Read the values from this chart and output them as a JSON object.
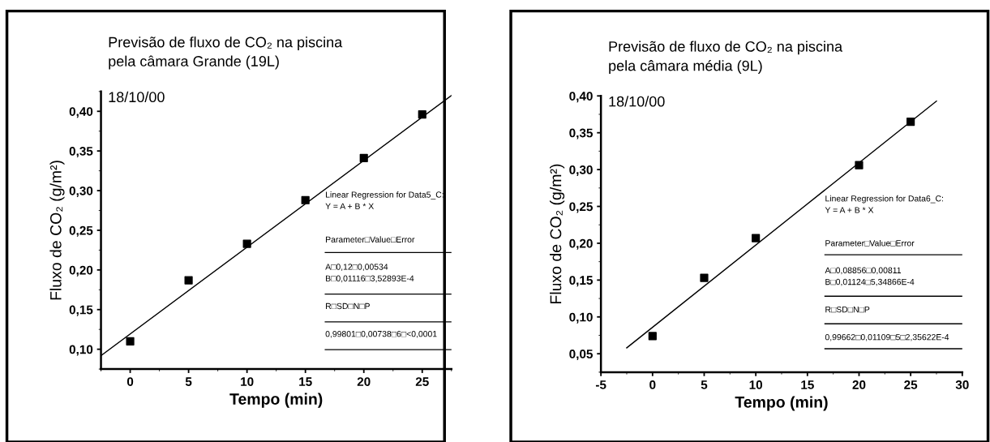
{
  "chart_data": [
    {
      "type": "scatter",
      "title": "Previsão de fluxo de CO₂ na piscina\npela câmara Grande (19L)",
      "subtitle": "18/10/00",
      "xlabel": "Tempo (min)",
      "ylabel": "Fluxo de CO₂ (g/m²)",
      "series": [
        {
          "color": "#000000",
          "marker": "square",
          "x": [
            0,
            5,
            10,
            15,
            20,
            25
          ],
          "values": [
            0.11,
            0.187,
            0.233,
            0.288,
            0.341,
            0.396
          ]
        },
        {
          "type": "line",
          "color": "#000000",
          "marker": "none",
          "line_style": "solid",
          "x": [
            -2.5,
            27.5
          ],
          "values": [
            0.092,
            0.42
          ]
        }
      ],
      "xlim": [
        -2.5,
        27.5
      ],
      "xticks": [
        0,
        5,
        10,
        15,
        20,
        25
      ],
      "ylim": [
        0.075,
        0.425
      ],
      "yticks": [
        {
          "value": 0.1,
          "label": "0,10"
        },
        {
          "value": 0.15,
          "label": "0,15"
        },
        {
          "value": 0.2,
          "label": "0,20"
        },
        {
          "value": 0.25,
          "label": "0,25"
        },
        {
          "value": 0.3,
          "label": "0,30"
        },
        {
          "value": 0.35,
          "label": "0,35"
        },
        {
          "value": 0.4,
          "label": "0,40"
        }
      ],
      "grid": false,
      "legend": false,
      "annotations": [
        "Linear Regression for Data5_C:\nY = A + B * X",
        "Parameter□Value□Error",
        "A□0,12□0,00534\nB□0,01116□3,52893E-4",
        "R□SD□N□P",
        "0,99801□0,00738□6□<0,0001"
      ]
    },
    {
      "type": "scatter",
      "title": "Previsão de fluxo de CO₂ na piscina\npela câmara média (9L)",
      "subtitle": "18/10/00",
      "xlabel": "Tempo (min)",
      "ylabel": "Fluxo de CO₂ (g/m²)",
      "series": [
        {
          "color": "#000000",
          "marker": "square",
          "x": [
            0,
            5,
            10,
            20,
            25
          ],
          "values": [
            0.074,
            0.153,
            0.207,
            0.306,
            0.365
          ]
        },
        {
          "type": "line",
          "color": "#000000",
          "marker": "none",
          "line_style": "solid",
          "x": [
            -2.5,
            27.5
          ],
          "values": [
            0.058,
            0.393
          ]
        }
      ],
      "xlim": [
        -5,
        30
      ],
      "xticks": [
        -5,
        0,
        5,
        10,
        15,
        20,
        25,
        30
      ],
      "ylim": [
        0.025,
        0.4
      ],
      "yticks": [
        {
          "value": 0.05,
          "label": "0,05"
        },
        {
          "value": 0.1,
          "label": "0,10"
        },
        {
          "value": 0.15,
          "label": "0,15"
        },
        {
          "value": 0.2,
          "label": "0,20"
        },
        {
          "value": 0.25,
          "label": "0,25"
        },
        {
          "value": 0.3,
          "label": "0,30"
        },
        {
          "value": 0.35,
          "label": "0,35"
        },
        {
          "value": 0.4,
          "label": "0,40"
        }
      ],
      "grid": false,
      "legend": false,
      "annotations": [
        "Linear Regression for Data6_C:\nY = A + B * X",
        "Parameter□Value□Error",
        "A□0,08856□0,00811\nB□0,01124□5,34866E-4",
        "R□SD□N□P",
        "0,99662□0,01109□5□2,35622E-4"
      ]
    }
  ]
}
